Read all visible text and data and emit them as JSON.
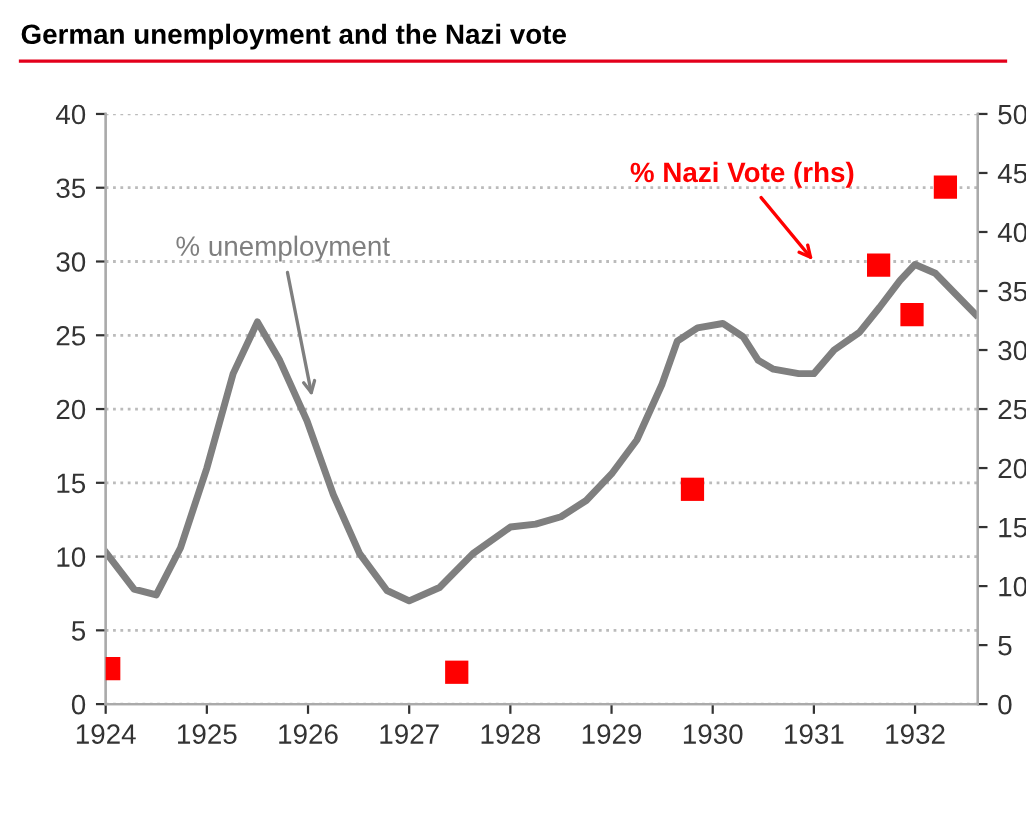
{
  "chart_data": {
    "type": "line",
    "title": "German unemployment and the Nazi vote",
    "series": [
      {
        "color": "#7f7f7f",
        "x": [
          1924.0,
          1924.28,
          1924.5,
          1924.74,
          1925.0,
          1925.26,
          1925.5,
          1925.72,
          1925.99,
          1926.25,
          1926.51,
          1926.78,
          1927.0,
          1927.3,
          1927.63,
          1928.0,
          1928.25,
          1928.5,
          1928.75,
          1929.0,
          1929.25,
          1929.5,
          1929.65,
          1929.85,
          1930.1,
          1930.3,
          1930.45,
          1930.6,
          1930.85,
          1931.0,
          1931.2,
          1931.45,
          1931.65,
          1931.85,
          1932.0,
          1932.2,
          1932.4,
          1932.6
        ],
        "values": [
          10.3,
          7.8,
          7.4,
          10.6,
          16,
          22.4,
          25.9,
          23.3,
          19.2,
          14.2,
          10.2,
          7.7,
          7.0,
          7.9,
          10.2,
          12.0,
          12.2,
          12.7,
          13.8,
          15.6,
          17.9,
          21.7,
          24.6,
          25.5,
          25.8,
          24.9,
          23.3,
          22.7,
          22.4,
          22.4,
          24.0,
          25.2,
          26.9,
          28.7,
          29.8,
          29.2,
          27.8,
          26.4
        ],
        "marker": "none",
        "line_style": "solid"
      },
      {
        "type": "scatter",
        "axis": "y2",
        "color": "#ff0000",
        "x": [
          1924.03,
          1927.47,
          1929.8,
          1931.64,
          1931.97,
          1932.3
        ],
        "values": [
          3.0,
          2.7,
          18.2,
          37.2,
          33.0,
          43.8
        ],
        "marker": "square"
      }
    ],
    "xlim": [
      1924,
      1932.62
    ],
    "xticks": [
      1924,
      1925,
      1926,
      1927,
      1928,
      1929,
      1930,
      1931,
      1932
    ],
    "ylim": [
      0,
      40
    ],
    "yticks": [
      0,
      5,
      10,
      15,
      20,
      25,
      30,
      35,
      40
    ],
    "y2lim": [
      0,
      50
    ],
    "y2ticks": [
      0,
      5,
      10,
      15,
      20,
      25,
      30,
      35,
      40,
      45,
      50
    ],
    "grid": "y",
    "legend": false,
    "annotations": [
      {
        "text": "% unemployment",
        "x": 1926.05,
        "y": 20.5
      },
      "% Nazi Vote (rhs)"
    ]
  }
}
